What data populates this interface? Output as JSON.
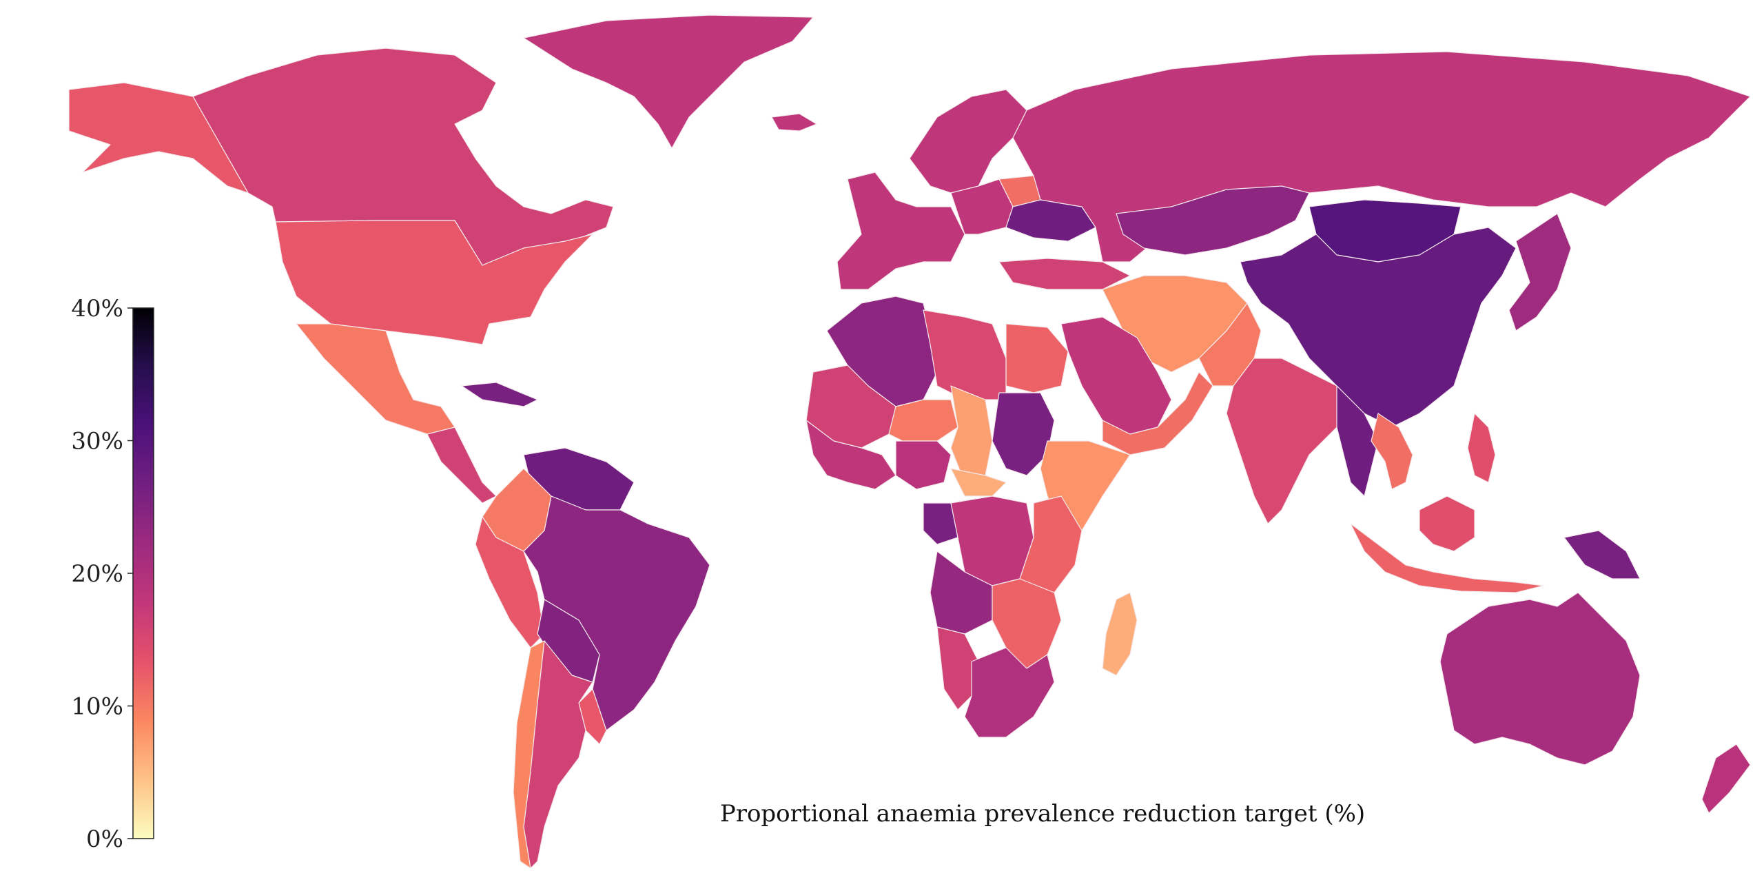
{
  "caption": "Proportional anaemia prevalence reduction target (%)",
  "colorbar": {
    "min": 0,
    "max": 40,
    "ticks": [
      {
        "value": 0,
        "label": "0%"
      },
      {
        "value": 10,
        "label": "10%"
      },
      {
        "value": 20,
        "label": "20%"
      },
      {
        "value": 30,
        "label": "30%"
      },
      {
        "value": 40,
        "label": "40%"
      }
    ],
    "stops": [
      "#fcfdbf",
      "#fec287",
      "#fb8761",
      "#e5526a",
      "#c2377a",
      "#9d2a7f",
      "#721f81",
      "#4b117a",
      "#260e4e",
      "#000004"
    ]
  },
  "colors": {
    "no_data": "#e8e8e8",
    "border": "#f4e9ec",
    "background": "#ffffff"
  },
  "regions": [
    {
      "name": "Greenland",
      "value": 18
    },
    {
      "name": "Canada",
      "value": 16
    },
    {
      "name": "Alaska",
      "value": 13
    },
    {
      "name": "United States",
      "value": 13
    },
    {
      "name": "Mexico",
      "value": 10
    },
    {
      "name": "Central America",
      "value": 16
    },
    {
      "name": "Caribbean",
      "value": 26
    },
    {
      "name": "Colombia & Ecuador",
      "value": 10
    },
    {
      "name": "Venezuela",
      "value": 27
    },
    {
      "name": "Peru",
      "value": 13
    },
    {
      "name": "Brazil",
      "value": 24
    },
    {
      "name": "Bolivia & Paraguay",
      "value": 25
    },
    {
      "name": "Chile",
      "value": 9
    },
    {
      "name": "Argentina",
      "value": 16
    },
    {
      "name": "Uruguay & S Brazil",
      "value": 13
    },
    {
      "name": "Iceland",
      "value": 18
    },
    {
      "name": "Western Europe",
      "value": 18
    },
    {
      "name": "Scandinavia",
      "value": 18
    },
    {
      "name": "Eastern Europe",
      "value": 18
    },
    {
      "name": "Ukraine",
      "value": 27
    },
    {
      "name": "Belarus",
      "value": 11
    },
    {
      "name": "Russia",
      "value": 18
    },
    {
      "name": "Kazakhstan",
      "value": 24
    },
    {
      "name": "Mongolia",
      "value": 30
    },
    {
      "name": "China",
      "value": 28
    },
    {
      "name": "Japan",
      "value": 22
    },
    {
      "name": "Iran & Afghanistan",
      "value": 8
    },
    {
      "name": "Turkey & Caucasus",
      "value": 16
    },
    {
      "name": "Arabian Peninsula",
      "value": 18
    },
    {
      "name": "Yemen & Oman",
      "value": 11
    },
    {
      "name": "Pakistan",
      "value": 10
    },
    {
      "name": "India",
      "value": 15
    },
    {
      "name": "Myanmar & Thailand",
      "value": 27
    },
    {
      "name": "Vietnam & Laos",
      "value": 11
    },
    {
      "name": "Indonesia",
      "value": 12
    },
    {
      "name": "Borneo",
      "value": 14
    },
    {
      "name": "Philippines",
      "value": 14
    },
    {
      "name": "Papua New Guinea",
      "value": 26
    },
    {
      "name": "Australia",
      "value": 21
    },
    {
      "name": "New Zealand",
      "value": 19
    },
    {
      "name": "Morocco & Algeria",
      "value": 24
    },
    {
      "name": "Libya",
      "value": 15
    },
    {
      "name": "Egypt",
      "value": 12
    },
    {
      "name": "Mauritania & Mali",
      "value": 16
    },
    {
      "name": "Niger",
      "value": 10
    },
    {
      "name": "Chad",
      "value": 7
    },
    {
      "name": "Sudan",
      "value": 26
    },
    {
      "name": "West Africa",
      "value": 18
    },
    {
      "name": "Nigeria",
      "value": 19
    },
    {
      "name": "Central African Republic",
      "value": 6
    },
    {
      "name": "Ethiopia & Somalia",
      "value": 8
    },
    {
      "name": "Gabon & Congo",
      "value": 26
    },
    {
      "name": "DR Congo",
      "value": 18
    },
    {
      "name": "Kenya & Tanzania",
      "value": 12
    },
    {
      "name": "Angola",
      "value": 23
    },
    {
      "name": "Zambia & Mozambique",
      "value": 12
    },
    {
      "name": "Namibia",
      "value": 16
    },
    {
      "name": "South Africa",
      "value": 20
    },
    {
      "name": "Madagascar",
      "value": 6
    }
  ]
}
